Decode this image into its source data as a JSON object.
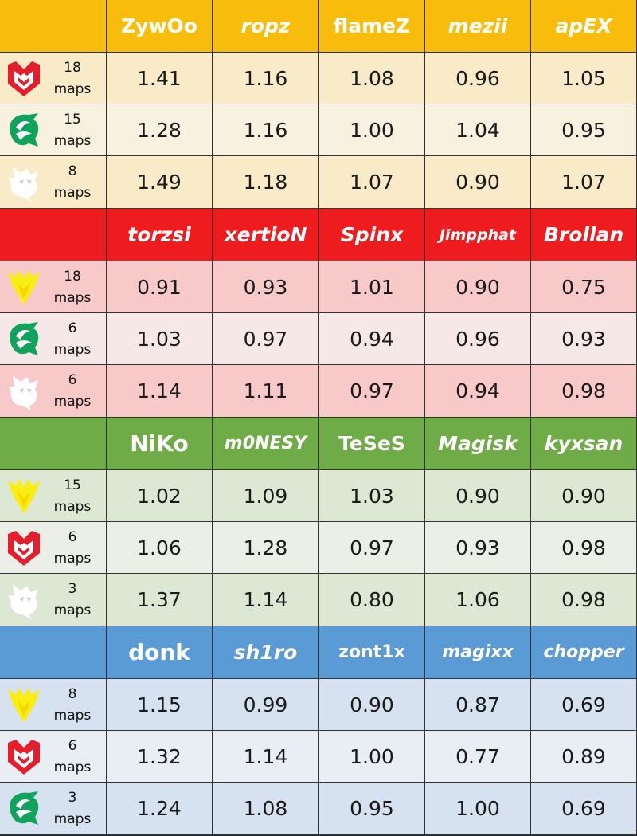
{
  "colors": {
    "blocks": [
      {
        "header": "#f8bd0c",
        "rows": [
          "#f9ebc8",
          "#f9f1e0",
          "#f9ebc8"
        ]
      },
      {
        "header": "#ee1c1f",
        "rows": [
          "#f8c9c9",
          "#f7e8e8",
          "#f8c9c9"
        ]
      },
      {
        "header": "#6fab47",
        "rows": [
          "#dce8d3",
          "#ebefe7",
          "#dce8d3"
        ]
      },
      {
        "header": "#5b9bd5",
        "rows": [
          "#d6e2ef",
          "#e9eef4",
          "#d6e2ef"
        ]
      }
    ],
    "logos": {
      "mouz-logo": "#e31e2d",
      "falcons-logo": "#11a35e",
      "spirit-logo": "#ffffff",
      "vitality-logo": "#f8ee13"
    }
  },
  "blocks": [
    {
      "players": [
        "ZywOo",
        "ropz",
        "flameZ",
        "mezii",
        "apEX"
      ],
      "rows": [
        {
          "logo": "mouz-logo",
          "count": "18",
          "unit": "maps",
          "values": [
            "1.41",
            "1.16",
            "1.08",
            "0.96",
            "1.05"
          ]
        },
        {
          "logo": "falcons-logo",
          "count": "15",
          "unit": "maps",
          "values": [
            "1.28",
            "1.16",
            "1.00",
            "1.04",
            "0.95"
          ]
        },
        {
          "logo": "spirit-logo",
          "count": "8",
          "unit": "maps",
          "values": [
            "1.49",
            "1.18",
            "1.07",
            "0.90",
            "1.07"
          ]
        }
      ]
    },
    {
      "players": [
        "torzsi",
        "xertioN",
        "Spinx",
        "Jimpphat",
        "Brollan"
      ],
      "rows": [
        {
          "logo": "vitality-logo",
          "count": "18",
          "unit": "maps",
          "values": [
            "0.91",
            "0.93",
            "1.01",
            "0.90",
            "0.75"
          ]
        },
        {
          "logo": "falcons-logo",
          "count": "6",
          "unit": "maps",
          "values": [
            "1.03",
            "0.97",
            "0.94",
            "0.96",
            "0.93"
          ]
        },
        {
          "logo": "spirit-logo",
          "count": "6",
          "unit": "maps",
          "values": [
            "1.14",
            "1.11",
            "0.97",
            "0.94",
            "0.98"
          ]
        }
      ]
    },
    {
      "players": [
        "NiKo",
        "m0NESY",
        "TeSeS",
        "Magisk",
        "kyxsan"
      ],
      "rows": [
        {
          "logo": "vitality-logo",
          "count": "15",
          "unit": "maps",
          "values": [
            "1.02",
            "1.09",
            "1.03",
            "0.90",
            "0.90"
          ]
        },
        {
          "logo": "mouz-logo",
          "count": "6",
          "unit": "maps",
          "values": [
            "1.06",
            "1.28",
            "0.97",
            "0.93",
            "0.98"
          ]
        },
        {
          "logo": "spirit-logo",
          "count": "3",
          "unit": "maps",
          "values": [
            "1.37",
            "1.14",
            "0.80",
            "1.06",
            "0.98"
          ]
        }
      ]
    },
    {
      "players": [
        "donk",
        "sh1ro",
        "zont1x",
        "magixx",
        "chopper"
      ],
      "rows": [
        {
          "logo": "vitality-logo",
          "count": "8",
          "unit": "maps",
          "values": [
            "1.15",
            "0.99",
            "0.90",
            "0.87",
            "0.69"
          ]
        },
        {
          "logo": "mouz-logo",
          "count": "6",
          "unit": "maps",
          "values": [
            "1.32",
            "1.14",
            "1.00",
            "0.77",
            "0.89"
          ]
        },
        {
          "logo": "falcons-logo",
          "count": "3",
          "unit": "maps",
          "values": [
            "1.24",
            "1.08",
            "0.95",
            "1.00",
            "0.69"
          ]
        }
      ]
    }
  ]
}
